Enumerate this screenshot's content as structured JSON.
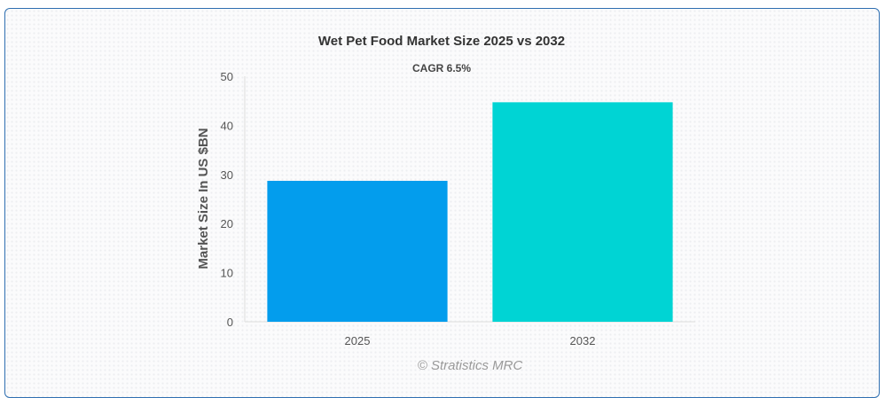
{
  "chart_data": {
    "type": "bar",
    "title": "Wet Pet Food Market Size 2025 vs 2032",
    "subtitle": "CAGR 6.5%",
    "xlabel": "",
    "ylabel": "Market Size In US $BN",
    "categories": [
      "2025",
      "2032"
    ],
    "values": [
      28.7,
      44.7
    ],
    "colors": [
      "#039ded",
      "#00d4d4"
    ],
    "ylim": [
      0,
      50
    ],
    "yticks": [
      "0",
      "10",
      "20",
      "30",
      "40",
      "50"
    ],
    "grid": false,
    "legend": "none"
  },
  "watermark": "© Stratistics MRC"
}
